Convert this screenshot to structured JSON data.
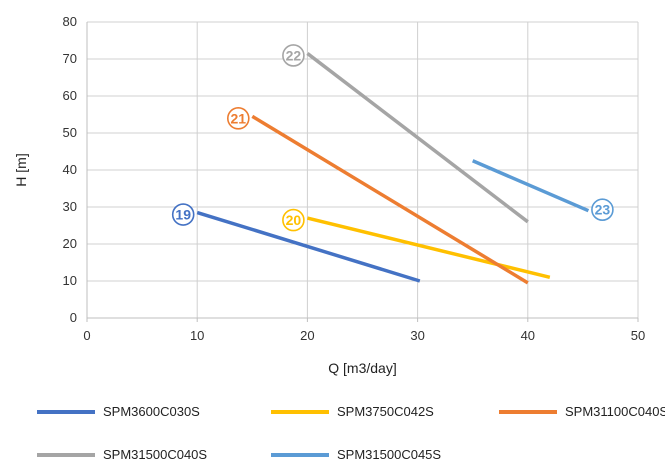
{
  "chart_data": {
    "type": "line",
    "title": "",
    "xlabel": "Q [m3/day]",
    "ylabel": "H [m]",
    "xlim": [
      0,
      50
    ],
    "ylim": [
      0,
      80
    ],
    "xticks": [
      0,
      10,
      20,
      30,
      40,
      50
    ],
    "yticks": [
      0,
      10,
      20,
      30,
      40,
      50,
      60,
      70,
      80
    ],
    "grid": true,
    "legend_position": "bottom",
    "series": [
      {
        "name": "SPM3600C030S",
        "badge": "19",
        "color": "#4472C4",
        "points": [
          [
            10,
            28.5
          ],
          [
            30.2,
            10
          ]
        ]
      },
      {
        "name": "SPM3750C042S",
        "badge": "20",
        "color": "#FFC000",
        "points": [
          [
            20,
            27
          ],
          [
            42,
            11
          ]
        ]
      },
      {
        "name": "SPM31100C040S",
        "badge": "21",
        "color": "#ED7D31",
        "points": [
          [
            15,
            54.5
          ],
          [
            40,
            9.5
          ]
        ]
      },
      {
        "name": "SPM31500C040S",
        "badge": "22",
        "color": "#A5A5A5",
        "points": [
          [
            20,
            71.5
          ],
          [
            40,
            26
          ]
        ]
      },
      {
        "name": "SPM31500C045S",
        "badge": "23",
        "color": "#5B9BD5",
        "points": [
          [
            35,
            42.5
          ],
          [
            45.5,
            29
          ]
        ]
      }
    ]
  }
}
